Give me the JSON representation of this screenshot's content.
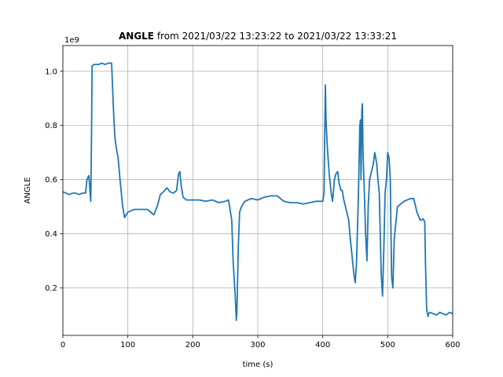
{
  "chart_data": {
    "type": "line",
    "title_bold": "ANGLE",
    "title_rest": " from 2021/03/22 13:23:22 to 2021/03/22 13:33:21",
    "xlabel": "time (s)",
    "ylabel": "ANGLE",
    "y_offset_label": "1e9",
    "xlim": [
      0,
      600
    ],
    "ylim": [
      0.025,
      1.095
    ],
    "xticks": [
      0,
      100,
      200,
      300,
      400,
      500,
      600
    ],
    "xtick_labels": [
      "0",
      "100",
      "200",
      "300",
      "400",
      "500",
      "600"
    ],
    "yticks": [
      0.2,
      0.4,
      0.6,
      0.8,
      1.0
    ],
    "ytick_labels": [
      "0.2",
      "0.4",
      "0.6",
      "0.8",
      "1.0"
    ],
    "grid": true,
    "line_color": "#1f77b4",
    "series": [
      {
        "x": [
          0,
          5,
          10,
          15,
          20,
          25,
          30,
          35,
          37,
          40,
          42,
          43,
          44,
          45,
          48,
          50,
          55,
          60,
          65,
          70,
          75,
          78,
          80,
          82,
          85,
          88,
          90,
          92,
          95,
          100,
          110,
          120,
          130,
          140,
          145,
          150,
          155,
          160,
          165,
          170,
          175,
          178,
          180,
          182,
          185,
          190,
          200,
          210,
          220,
          230,
          240,
          250,
          255,
          260,
          262,
          265,
          267,
          268,
          270,
          272,
          275,
          280,
          290,
          300,
          310,
          320,
          330,
          340,
          350,
          360,
          370,
          380,
          390,
          400,
          402,
          403,
          404,
          405,
          407,
          410,
          413,
          415,
          418,
          420,
          423,
          425,
          428,
          430,
          432,
          435,
          440,
          442,
          445,
          448,
          450,
          452,
          455,
          457,
          458,
          459,
          460,
          461,
          462,
          464,
          466,
          468,
          470,
          472,
          475,
          478,
          480,
          483,
          485,
          487,
          488,
          490,
          492,
          494,
          496,
          498,
          500,
          502,
          504,
          505,
          506,
          508,
          510,
          515,
          520,
          525,
          530,
          535,
          540,
          545,
          550,
          555,
          557,
          558,
          560,
          562,
          563,
          565,
          570,
          575,
          580,
          585,
          590,
          595,
          600
        ],
        "y": [
          0.555,
          0.55,
          0.545,
          0.55,
          0.55,
          0.545,
          0.55,
          0.55,
          0.6,
          0.615,
          0.55,
          0.52,
          0.75,
          1.02,
          1.025,
          1.025,
          1.025,
          1.03,
          1.025,
          1.03,
          1.03,
          0.85,
          0.76,
          0.72,
          0.68,
          0.6,
          0.55,
          0.5,
          0.46,
          0.48,
          0.49,
          0.49,
          0.49,
          0.47,
          0.5,
          0.545,
          0.555,
          0.57,
          0.555,
          0.55,
          0.56,
          0.62,
          0.63,
          0.58,
          0.535,
          0.525,
          0.525,
          0.525,
          0.52,
          0.525,
          0.515,
          0.52,
          0.525,
          0.45,
          0.3,
          0.18,
          0.08,
          0.12,
          0.35,
          0.48,
          0.5,
          0.52,
          0.53,
          0.525,
          0.535,
          0.54,
          0.54,
          0.52,
          0.515,
          0.515,
          0.51,
          0.515,
          0.52,
          0.52,
          0.55,
          0.74,
          0.95,
          0.82,
          0.72,
          0.62,
          0.55,
          0.52,
          0.6,
          0.62,
          0.63,
          0.59,
          0.56,
          0.56,
          0.53,
          0.5,
          0.45,
          0.39,
          0.32,
          0.25,
          0.22,
          0.3,
          0.55,
          0.8,
          0.82,
          0.6,
          0.85,
          0.88,
          0.7,
          0.55,
          0.4,
          0.3,
          0.5,
          0.6,
          0.63,
          0.66,
          0.7,
          0.66,
          0.6,
          0.55,
          0.45,
          0.25,
          0.17,
          0.35,
          0.55,
          0.6,
          0.7,
          0.68,
          0.6,
          0.4,
          0.24,
          0.2,
          0.38,
          0.5,
          0.51,
          0.52,
          0.525,
          0.53,
          0.53,
          0.48,
          0.45,
          0.455,
          0.44,
          0.3,
          0.12,
          0.095,
          0.105,
          0.11,
          0.105,
          0.1,
          0.11,
          0.105,
          0.1,
          0.11,
          0.105
        ]
      }
    ]
  }
}
